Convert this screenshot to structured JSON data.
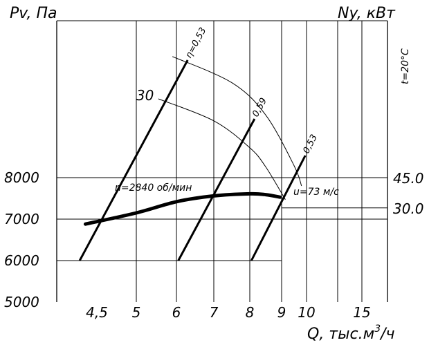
{
  "chart_data": {
    "type": "line",
    "left_axis_label": "Pv, Па",
    "right_axis_label": "Ny, кВт",
    "xlabel_parts": [
      "Q,  тыс.м",
      "3",
      "/ч"
    ],
    "temperature_label": "t=20°C",
    "y_ticks": [
      {
        "value": 8000,
        "label": "8000"
      },
      {
        "value": 7000,
        "label": "7000"
      },
      {
        "value": 6000,
        "label": "6000"
      },
      {
        "value": 5000,
        "label": "5000"
      }
    ],
    "y_gridlines": [
      8000,
      7000,
      6000
    ],
    "ylim": [
      5000,
      8500
    ],
    "x_ticks": [
      {
        "value": 4.5,
        "label": "4,5"
      },
      {
        "value": 5,
        "label": "5"
      },
      {
        "value": 6,
        "label": "6"
      },
      {
        "value": 7,
        "label": "7"
      },
      {
        "value": 8,
        "label": "8"
      },
      {
        "value": 9,
        "label": "9"
      },
      {
        "value": 10,
        "label": "10"
      },
      {
        "value": 15,
        "label": "15"
      }
    ],
    "x_gridlines": [
      5,
      6,
      7,
      8,
      9,
      10,
      12.5,
      15
    ],
    "xlim": [
      3.8,
      17
    ],
    "right_ticks": [
      {
        "label": "45.0",
        "pv": 8000
      },
      {
        "label": "30.0",
        "pv": 7270
      }
    ],
    "pressure_curve": {
      "speed_label": "n=2840 об/мин",
      "velocity_label": "u=73 м/с",
      "points": [
        [
          4.3,
          6880
        ],
        [
          5,
          7150
        ],
        [
          6,
          7420
        ],
        [
          7,
          7560
        ],
        [
          8,
          7610
        ],
        [
          8.5,
          7590
        ],
        [
          8.95,
          7530
        ]
      ]
    },
    "efficiency_lines": [
      {
        "label": "η=0,53",
        "q0": 4.2,
        "q1": 6.3
      },
      {
        "label": "0,59",
        "q0": 6.05,
        "q1": 8.15
      },
      {
        "label": "0,53",
        "q0": 8.05,
        "q1": 9.95
      }
    ],
    "power_curves": [
      {
        "label": "30",
        "points": [
          [
            5.55,
            9900
          ],
          [
            7,
            9370
          ],
          [
            8,
            8720
          ],
          [
            8.5,
            8260
          ],
          [
            9.15,
            7470
          ]
        ]
      },
      {
        "label": "",
        "points": [
          [
            5.9,
            10920
          ],
          [
            7.5,
            10290
          ],
          [
            8.5,
            9510
          ],
          [
            9.5,
            8290
          ],
          [
            9.8,
            7800
          ]
        ]
      }
    ]
  }
}
